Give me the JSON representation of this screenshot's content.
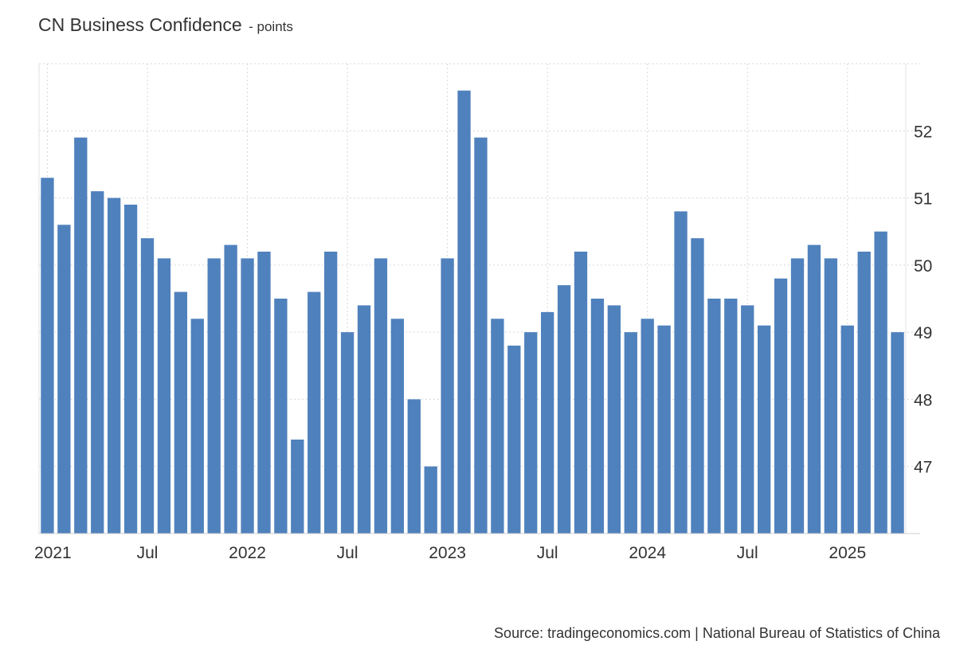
{
  "chart_data": {
    "type": "bar",
    "title": "CN Business Confidence",
    "subtitle": "- points",
    "xlabel": "",
    "ylabel": "",
    "color": "#4f81bd",
    "ylim": [
      46,
      53
    ],
    "yticks": [
      47,
      48,
      49,
      50,
      51,
      52
    ],
    "y_axis_position": "right",
    "grid": true,
    "x_tick_labels": [
      {
        "label": "2021",
        "index": 0
      },
      {
        "label": "Jul",
        "index": 6
      },
      {
        "label": "2022",
        "index": 12
      },
      {
        "label": "Jul",
        "index": 18
      },
      {
        "label": "2023",
        "index": 24
      },
      {
        "label": "Jul",
        "index": 30
      },
      {
        "label": "2024",
        "index": 36
      },
      {
        "label": "Jul",
        "index": 42
      },
      {
        "label": "2025",
        "index": 48
      }
    ],
    "values": [
      51.3,
      50.6,
      51.9,
      51.1,
      51.0,
      50.9,
      50.4,
      50.1,
      49.6,
      49.2,
      50.1,
      50.3,
      50.1,
      50.2,
      49.5,
      47.4,
      49.6,
      50.2,
      49.0,
      49.4,
      50.1,
      49.2,
      48.0,
      47.0,
      50.1,
      52.6,
      51.9,
      49.2,
      48.8,
      49.0,
      49.3,
      49.7,
      50.2,
      49.5,
      49.4,
      49.0,
      49.2,
      49.1,
      50.8,
      50.4,
      49.5,
      49.5,
      49.4,
      49.1,
      49.8,
      50.1,
      50.3,
      50.1,
      49.1,
      50.2,
      50.5,
      49.0
    ]
  },
  "source": "Source: tradingeconomics.com | National Bureau of Statistics of China"
}
